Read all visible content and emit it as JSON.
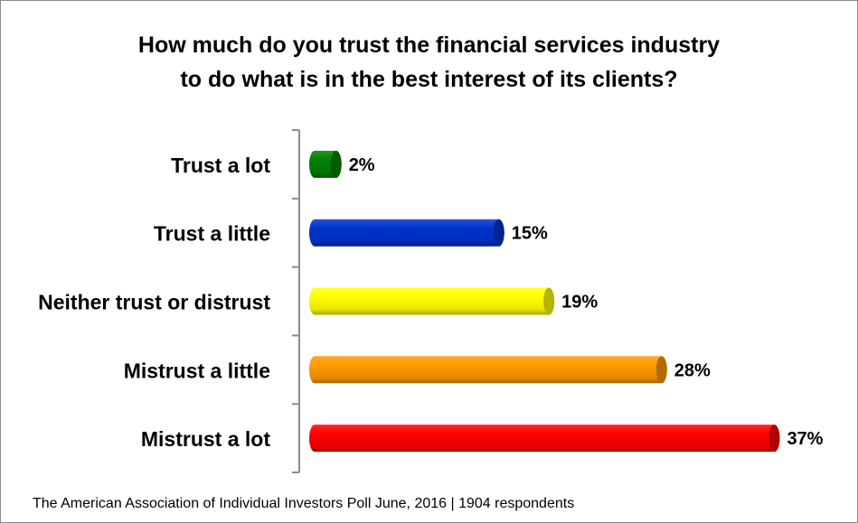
{
  "chart_data": {
    "type": "bar",
    "orientation": "horizontal",
    "title": [
      "How much do you trust the financial services industry",
      "to do what is in the best interest of its clients?"
    ],
    "categories": [
      "Trust a lot",
      "Trust a little",
      "Neither trust or distrust",
      "Mistrust a little",
      "Mistrust a lot"
    ],
    "values": [
      2,
      15,
      19,
      28,
      37
    ],
    "value_labels": [
      "2%",
      "15%",
      "19%",
      "28%",
      "37%"
    ],
    "colors": [
      "#008000",
      "#0033cc",
      "#ffff00",
      "#ff9900",
      "#ff0000"
    ],
    "xlabel": "",
    "ylabel": "",
    "grid": false,
    "footer": "The American Association of Individual Investors Poll June, 2016 | 1904 respondents"
  }
}
